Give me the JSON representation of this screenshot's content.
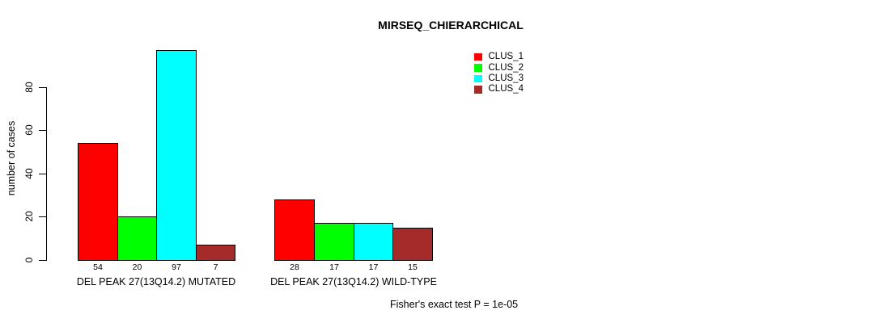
{
  "chart_data": {
    "type": "bar",
    "title": "MIRSEQ_CHIERARCHICAL",
    "xlabel": "",
    "ylabel": "number of cases",
    "categories": [
      "DEL PEAK 27(13Q14.2) MUTATED",
      "DEL PEAK 27(13Q14.2) WILD-TYPE"
    ],
    "series": [
      {
        "name": "CLUS_1",
        "color": "#FF0000",
        "values": [
          54,
          28
        ]
      },
      {
        "name": "CLUS_2",
        "color": "#00FF00",
        "values": [
          20,
          17
        ]
      },
      {
        "name": "CLUS_3",
        "color": "#00FFFF",
        "values": [
          97,
          17
        ]
      },
      {
        "name": "CLUS_4",
        "color": "#A52A2A",
        "values": [
          7,
          15
        ]
      }
    ],
    "yticks": [
      0,
      20,
      40,
      60,
      80
    ],
    "ylim": [
      0,
      100
    ],
    "grid": false,
    "legend_position": "top-right",
    "show_bar_value_labels": true,
    "annotation": "Fisher's exact test P = 1e-05"
  }
}
